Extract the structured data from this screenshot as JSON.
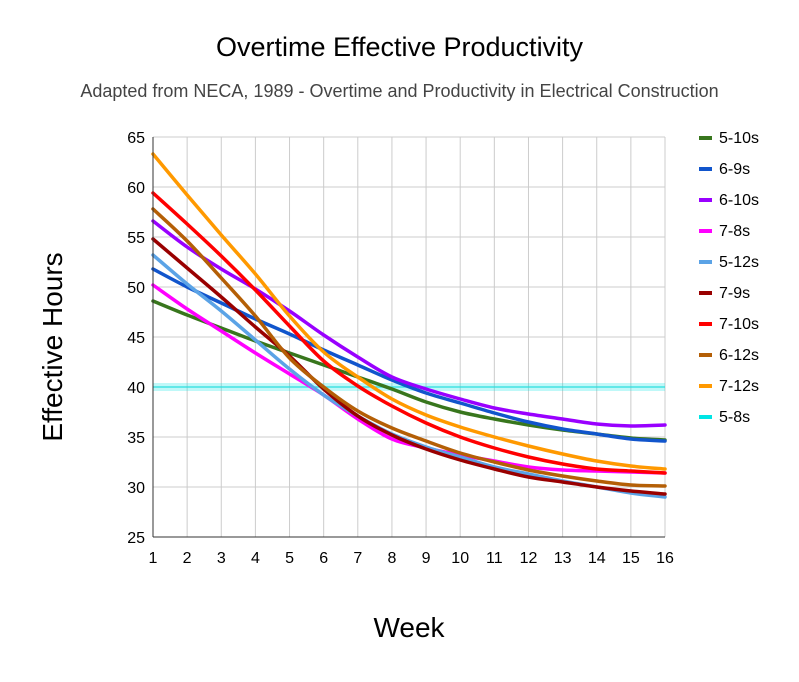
{
  "chart_data": {
    "type": "line",
    "title": "Overtime Effective Productivity",
    "subtitle": "Adapted from NECA, 1989 - Overtime and Productivity in Electrical Construction",
    "xlabel": "Week",
    "ylabel": "Effective Hours",
    "x": [
      1,
      2,
      3,
      4,
      5,
      6,
      7,
      8,
      9,
      10,
      11,
      12,
      13,
      14,
      15,
      16
    ],
    "xlim": [
      1,
      16
    ],
    "ylim": [
      25,
      65
    ],
    "yticks": [
      25,
      30,
      35,
      40,
      45,
      50,
      55,
      60,
      65
    ],
    "grid": true,
    "legend_position": "right",
    "series": [
      {
        "name": "5-10s",
        "color": "#38761d",
        "values": [
          48.6,
          47.2,
          45.9,
          44.6,
          43.4,
          42.2,
          41.0,
          39.8,
          38.5,
          37.5,
          36.8,
          36.2,
          35.7,
          35.3,
          34.9,
          34.7
        ]
      },
      {
        "name": "6-9s",
        "color": "#1155cc",
        "values": [
          51.8,
          50.0,
          48.4,
          46.8,
          45.3,
          43.7,
          42.2,
          40.7,
          39.4,
          38.4,
          37.4,
          36.5,
          35.8,
          35.3,
          34.8,
          34.6
        ]
      },
      {
        "name": "6-10s",
        "color": "#9900ff",
        "values": [
          56.6,
          54.0,
          51.8,
          49.8,
          47.6,
          45.2,
          43.0,
          41.0,
          39.8,
          38.8,
          37.9,
          37.3,
          36.8,
          36.3,
          36.1,
          36.2
        ]
      },
      {
        "name": "7-8s",
        "color": "#ff00ff",
        "values": [
          50.2,
          47.8,
          45.6,
          43.4,
          41.3,
          39.2,
          36.8,
          34.8,
          33.9,
          33.2,
          32.6,
          32.0,
          31.7,
          31.6,
          31.5,
          31.4
        ]
      },
      {
        "name": "5-12s",
        "color": "#5ba3e6",
        "values": [
          53.2,
          50.3,
          47.6,
          44.7,
          41.8,
          39.2,
          37.1,
          35.3,
          34.0,
          33.0,
          32.0,
          31.3,
          30.6,
          30.0,
          29.4,
          29.0
        ]
      },
      {
        "name": "7-9s",
        "color": "#990000",
        "values": [
          54.8,
          51.9,
          49.0,
          46.0,
          43.1,
          39.8,
          37.1,
          35.2,
          33.8,
          32.7,
          31.8,
          31.0,
          30.5,
          30.0,
          29.6,
          29.3
        ]
      },
      {
        "name": "7-10s",
        "color": "#ff0000",
        "values": [
          59.4,
          56.3,
          53.1,
          49.7,
          46.1,
          42.6,
          40.1,
          38.1,
          36.4,
          35.0,
          33.9,
          33.0,
          32.3,
          31.8,
          31.6,
          31.4
        ]
      },
      {
        "name": "6-12s",
        "color": "#b45f06",
        "values": [
          57.8,
          54.6,
          50.9,
          47.1,
          42.9,
          40.0,
          37.6,
          35.9,
          34.6,
          33.4,
          32.5,
          31.7,
          31.1,
          30.6,
          30.2,
          30.1
        ]
      },
      {
        "name": "7-12s",
        "color": "#ff9900",
        "values": [
          63.3,
          59.2,
          55.2,
          51.3,
          47.1,
          43.5,
          41.0,
          38.8,
          37.2,
          36.0,
          35.0,
          34.1,
          33.3,
          32.6,
          32.1,
          31.8
        ]
      },
      {
        "name": "5-8s",
        "color": "#00e5e5",
        "values": [
          40,
          40,
          40,
          40,
          40,
          40,
          40,
          40,
          40,
          40,
          40,
          40,
          40,
          40,
          40,
          40
        ]
      }
    ]
  }
}
